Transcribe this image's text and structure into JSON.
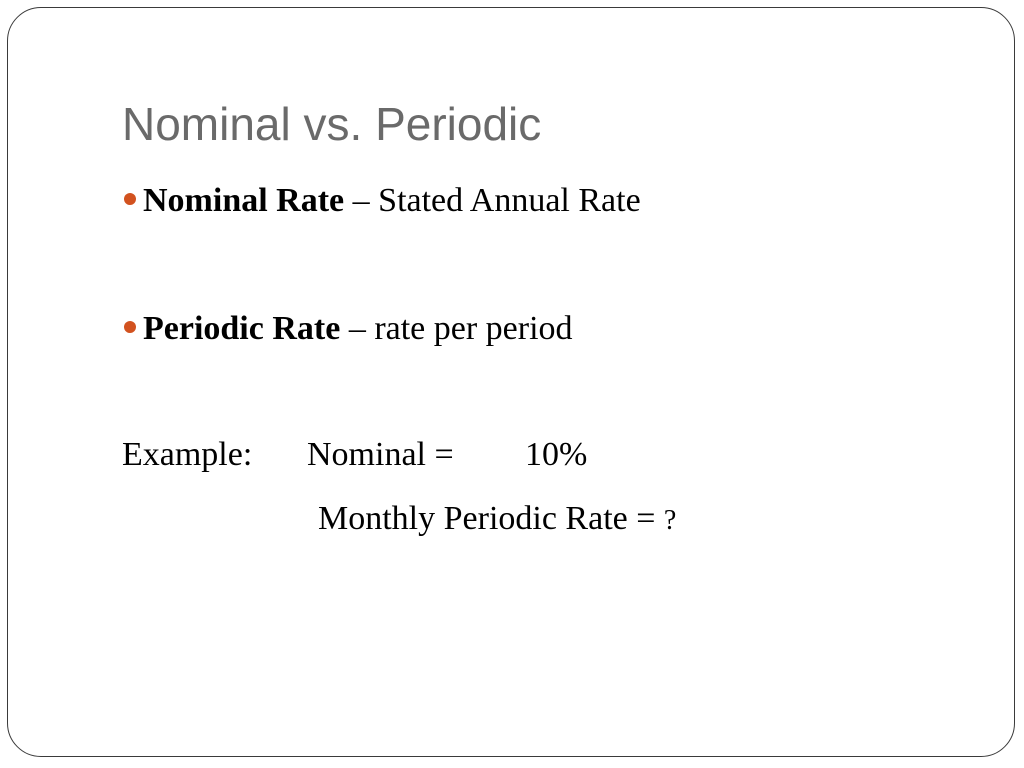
{
  "slide": {
    "title": "Nominal vs. Periodic",
    "bullets": [
      {
        "term": "Nominal Rate",
        "definition": "– Stated Annual Rate"
      },
      {
        "term": "Periodic Rate",
        "definition": "– rate per period"
      }
    ],
    "example": {
      "label": "Example:",
      "nominal_label": "Nominal =",
      "nominal_value": "10%",
      "monthly_label": "Monthly Periodic Rate =",
      "monthly_value": "?"
    },
    "colors": {
      "bullet": "#d2521f",
      "title": "#6a6a6a"
    }
  }
}
